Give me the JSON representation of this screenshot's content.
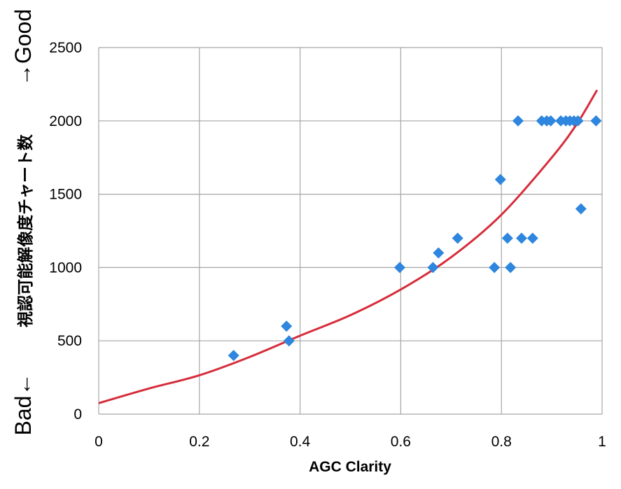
{
  "chart_data": {
    "type": "scatter",
    "title": "",
    "xlabel": "AGC Clarity",
    "ylabel": "視認可能解像度チャート数",
    "ylabel_top": "→Good",
    "ylabel_bottom": "Bad←",
    "xlim": [
      0,
      1
    ],
    "ylim": [
      0,
      2500
    ],
    "x_ticks": [
      0,
      0.2,
      0.4,
      0.6,
      0.8,
      1
    ],
    "x_tick_labels": [
      "0",
      "0.2",
      "0.4",
      "0.6",
      "0.8",
      "1"
    ],
    "y_ticks": [
      0,
      500,
      1000,
      1500,
      2000,
      2500
    ],
    "y_tick_labels": [
      "0",
      "500",
      "1000",
      "1500",
      "2000",
      "2500"
    ],
    "grid": true,
    "legend": "none",
    "series": [
      {
        "marker": "diamond",
        "color": "#2E86DE",
        "points": [
          {
            "x": 0.268,
            "y": 400
          },
          {
            "x": 0.373,
            "y": 600
          },
          {
            "x": 0.378,
            "y": 500
          },
          {
            "x": 0.598,
            "y": 1000
          },
          {
            "x": 0.664,
            "y": 1000
          },
          {
            "x": 0.675,
            "y": 1100
          },
          {
            "x": 0.713,
            "y": 1200
          },
          {
            "x": 0.786,
            "y": 1000
          },
          {
            "x": 0.798,
            "y": 1600
          },
          {
            "x": 0.812,
            "y": 1200
          },
          {
            "x": 0.818,
            "y": 1000
          },
          {
            "x": 0.833,
            "y": 2000
          },
          {
            "x": 0.84,
            "y": 1200
          },
          {
            "x": 0.862,
            "y": 1200
          },
          {
            "x": 0.88,
            "y": 2000
          },
          {
            "x": 0.89,
            "y": 2000
          },
          {
            "x": 0.898,
            "y": 2000
          },
          {
            "x": 0.918,
            "y": 2000
          },
          {
            "x": 0.928,
            "y": 2000
          },
          {
            "x": 0.936,
            "y": 2000
          },
          {
            "x": 0.944,
            "y": 2000
          },
          {
            "x": 0.952,
            "y": 2000
          },
          {
            "x": 0.958,
            "y": 1400
          },
          {
            "x": 0.988,
            "y": 2000
          }
        ]
      },
      {
        "type": "line",
        "color": "#D62D3C",
        "points": [
          {
            "x": 0.0,
            "y": 75
          },
          {
            "x": 0.1,
            "y": 175
          },
          {
            "x": 0.2,
            "y": 265
          },
          {
            "x": 0.3,
            "y": 390
          },
          {
            "x": 0.4,
            "y": 535
          },
          {
            "x": 0.5,
            "y": 675
          },
          {
            "x": 0.6,
            "y": 850
          },
          {
            "x": 0.7,
            "y": 1070
          },
          {
            "x": 0.8,
            "y": 1360
          },
          {
            "x": 0.9,
            "y": 1750
          },
          {
            "x": 0.95,
            "y": 1980
          },
          {
            "x": 0.99,
            "y": 2210
          }
        ]
      }
    ]
  }
}
